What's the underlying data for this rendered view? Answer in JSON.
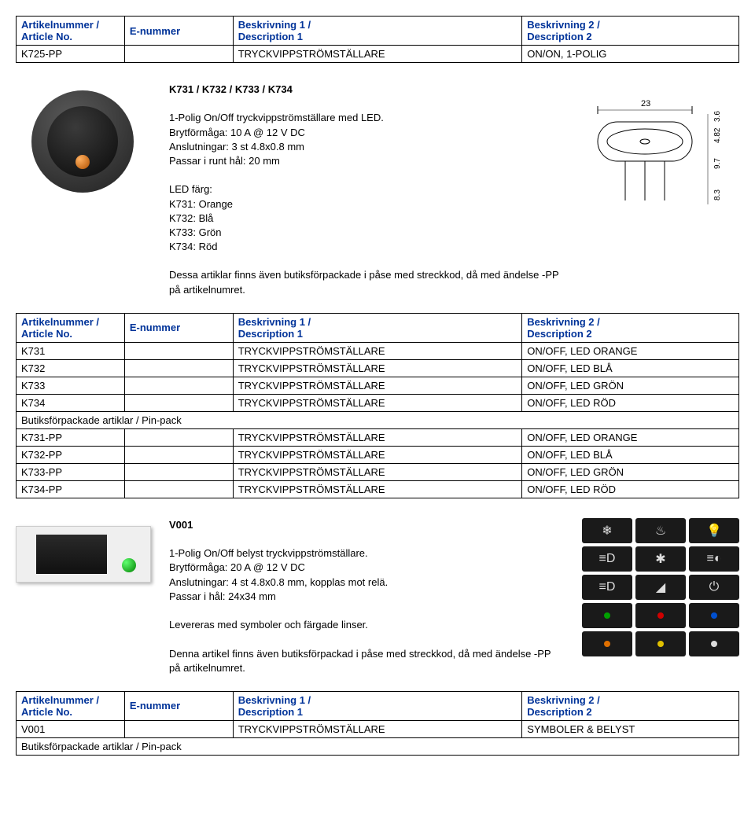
{
  "colors": {
    "header_text": "#003399",
    "border": "#000000",
    "led_orange": "#e07000",
    "led_green": "#00a000",
    "led_red": "#d00000",
    "led_blue": "#0050d0",
    "led_yellow": "#e0c000"
  },
  "table1": {
    "headers": {
      "art": "Artikelnummer /\nArticle No.",
      "enr": "E-nummer",
      "d1": "Beskrivning 1 /\nDescription 1",
      "d2": "Beskrivning 2 /\nDescription 2"
    },
    "rows": [
      {
        "art": "K725-PP",
        "enr": "",
        "d1": "TRYCKVIPPSTRÖMSTÄLLARE",
        "d2": "ON/ON, 1-POLIG"
      }
    ]
  },
  "product1": {
    "title": "K731 / K732 / K733 / K734",
    "lines": [
      "1-Polig On/Off tryckvippströmställare med LED.",
      "Brytförmåga: 10 A @ 12 V DC",
      "Anslutningar: 3 st 4.8x0.8 mm",
      "Passar i runt hål: 20 mm"
    ],
    "led_label": "LED färg:",
    "leds": [
      "K731: Orange",
      "K732: Blå",
      "K733: Grön",
      "K734: Röd"
    ],
    "note": "Dessa artiklar finns även butiksförpackade i påse med streckkod, då med ändelse -PP på artikelnumret.",
    "diagram": {
      "outer_w": 23,
      "dims_right": [
        "3.6",
        "4.82",
        "9.7",
        "8.3"
      ]
    }
  },
  "table2": {
    "headers": {
      "art": "Artikelnummer /\nArticle No.",
      "enr": "E-nummer",
      "d1": "Beskrivning 1 /\nDescription 1",
      "d2": "Beskrivning 2 /\nDescription 2"
    },
    "rows": [
      {
        "art": "K731",
        "enr": "",
        "d1": "TRYCKVIPPSTRÖMSTÄLLARE",
        "d2": "ON/OFF, LED ORANGE"
      },
      {
        "art": "K732",
        "enr": "",
        "d1": "TRYCKVIPPSTRÖMSTÄLLARE",
        "d2": "ON/OFF, LED BLÅ"
      },
      {
        "art": "K733",
        "enr": "",
        "d1": "TRYCKVIPPSTRÖMSTÄLLARE",
        "d2": "ON/OFF, LED GRÖN"
      },
      {
        "art": "K734",
        "enr": "",
        "d1": "TRYCKVIPPSTRÖMSTÄLLARE",
        "d2": "ON/OFF, LED RÖD"
      }
    ],
    "section_label": "Butiksförpackade artiklar / Pin-pack",
    "rows2": [
      {
        "art": "K731-PP",
        "enr": "",
        "d1": "TRYCKVIPPSTRÖMSTÄLLARE",
        "d2": "ON/OFF, LED ORANGE"
      },
      {
        "art": "K732-PP",
        "enr": "",
        "d1": "TRYCKVIPPSTRÖMSTÄLLARE",
        "d2": "ON/OFF, LED BLÅ"
      },
      {
        "art": "K733-PP",
        "enr": "",
        "d1": "TRYCKVIPPSTRÖMSTÄLLARE",
        "d2": "ON/OFF, LED GRÖN"
      },
      {
        "art": "K734-PP",
        "enr": "",
        "d1": "TRYCKVIPPSTRÖMSTÄLLARE",
        "d2": "ON/OFF, LED RÖD"
      }
    ]
  },
  "product2": {
    "title": "V001",
    "lines": [
      "1-Polig On/Off belyst tryckvippströmställare.",
      "Brytförmåga: 20 A @ 12 V DC",
      "Anslutningar: 4 st 4.8x0.8 mm, kopplas mot relä.",
      "Passar i hål: 24x34 mm"
    ],
    "extra1": "Levereras med symboler och färgade linser.",
    "note": "Denna artikel finns även butiksförpackad i påse med streckkod, då med ändelse -PP på artikelnumret."
  },
  "table3": {
    "headers": {
      "art": "Artikelnummer /\nArticle No.",
      "enr": "E-nummer",
      "d1": "Beskrivning 1 /\nDescription 1",
      "d2": "Beskrivning 2 /\nDescription 2"
    },
    "rows": [
      {
        "art": "V001",
        "enr": "",
        "d1": "TRYCKVIPPSTRÖMSTÄLLARE",
        "d2": "SYMBOLER & BELYST"
      }
    ],
    "section_label": "Butiksförpackade artiklar / Pin-pack"
  }
}
